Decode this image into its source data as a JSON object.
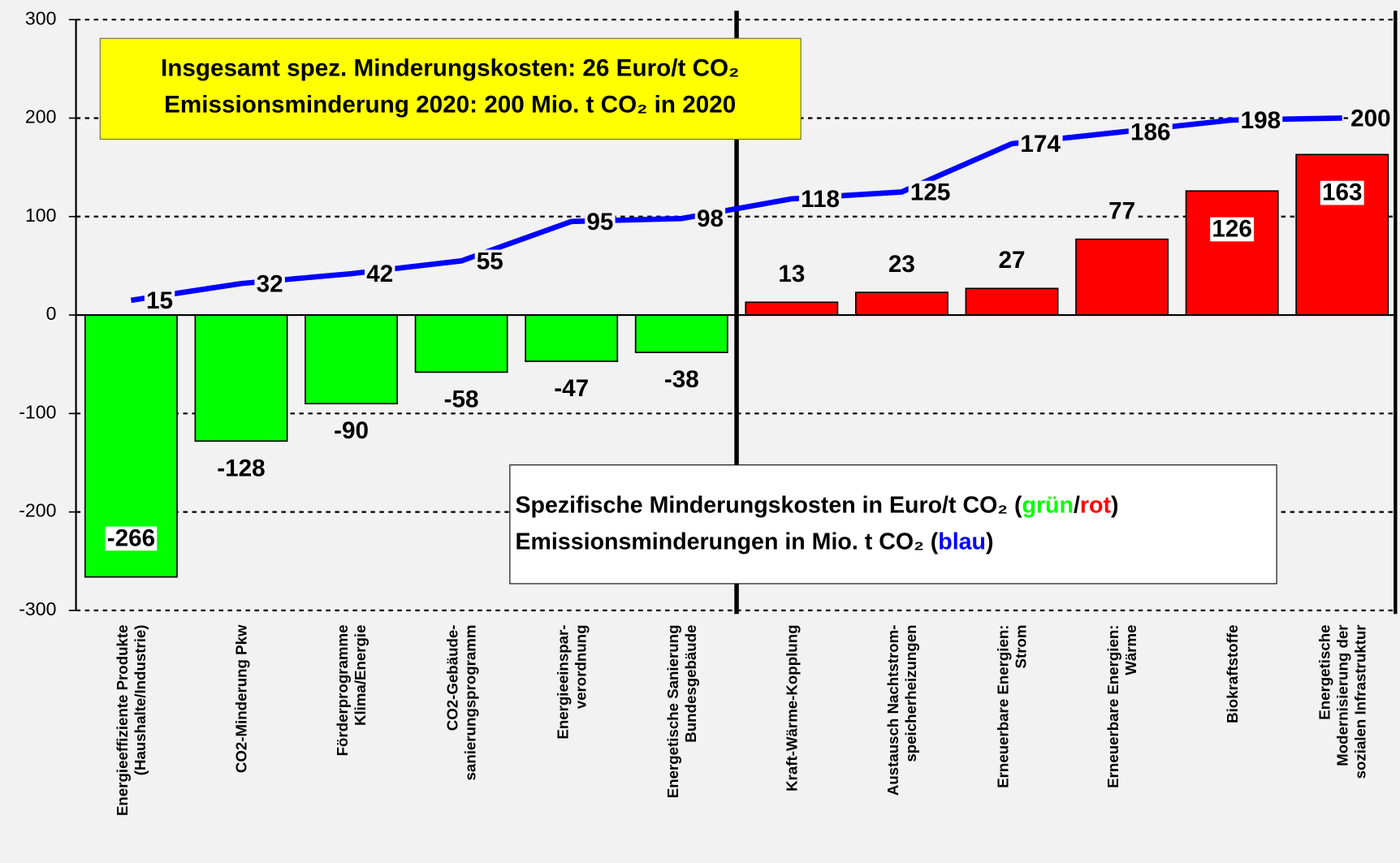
{
  "chart_data": {
    "type": "bar",
    "categories": [
      "Energieeffiziente Produkte\n(Haushalte/Industrie)",
      "CO2-Minderung Pkw",
      "Förderprogramme\nKlima/Energie",
      "CO2-Gebäude-\nsanierungsprogramm",
      "Energieeinspar-\nverordnung",
      "Energetische Sanierung\nBundesgebäude",
      "Kraft-Wärme-Kopplung",
      "Austausch Nachtstrom-\nspeicherheizungen",
      "Erneuerbare Energien:\nStrom",
      "Erneuerbare Energien:\nWärme",
      "Biokraftstoffe",
      "Energetische\nModernisierung der\nsozialen Infrastruktur"
    ],
    "series": [
      {
        "type": "bar",
        "colors": [
          "#00ff00",
          "#00ff00",
          "#00ff00",
          "#00ff00",
          "#00ff00",
          "#00ff00",
          "#ff0000",
          "#ff0000",
          "#ff0000",
          "#ff0000",
          "#ff0000",
          "#ff0000"
        ],
        "values": [
          -266,
          -128,
          -90,
          -58,
          -47,
          -38,
          13,
          23,
          27,
          77,
          126,
          163
        ]
      },
      {
        "type": "line",
        "color": "#0000ff",
        "values": [
          15,
          32,
          42,
          55,
          95,
          98,
          118,
          125,
          174,
          186,
          198,
          200
        ]
      }
    ],
    "ylim": [
      -300,
      300
    ],
    "yticks": [
      -300,
      -200,
      -100,
      0,
      100,
      200,
      300
    ],
    "grid": true,
    "info_box": [
      "Insgesamt spez. Minderungskosten: 26 Euro/t CO₂",
      "Emissionsminderung 2020: 200 Mio. t CO₂ in 2020"
    ],
    "legend_box": [
      [
        {
          "text": "Spezifische Minderungskosten in Euro/t CO₂ ("
        },
        {
          "text": "grün",
          "color": "#00ff00"
        },
        {
          "text": "/"
        },
        {
          "text": "rot",
          "color": "#ff0000"
        },
        {
          "text": ")"
        }
      ],
      [
        {
          "text": "Emissionsminderungen in Mio. t CO₂ ("
        },
        {
          "text": "blau",
          "color": "#0000ff"
        },
        {
          "text": ")"
        }
      ]
    ]
  }
}
